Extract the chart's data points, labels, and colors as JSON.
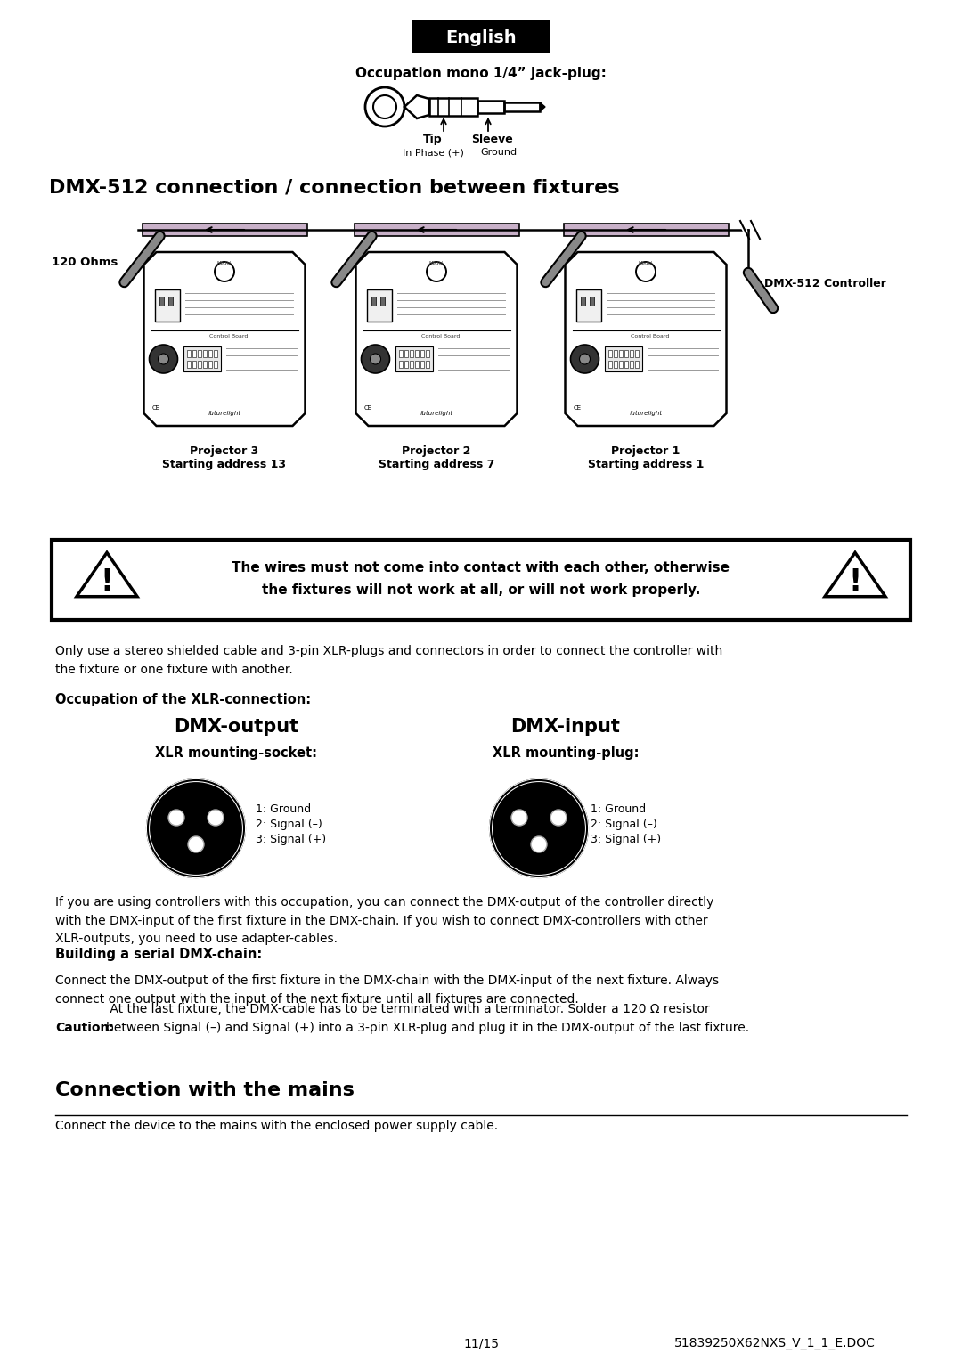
{
  "bg_color": "#ffffff",
  "title_english": "English",
  "jack_plug_title": "Occupation mono 1/4” jack-plug:",
  "dmx_section_title": "DMX-512 connection / connection between fixtures",
  "projector_labels": [
    "Projector 3\nStarting address 13",
    "Projector 2\nStarting address 7",
    "Projector 1\nStarting address 1"
  ],
  "dmx512_controller_label": "DMX-512 Controller",
  "ohms_label": "120 Ohms",
  "warning_line1": "The wires must not come into contact with each other, otherwise",
  "warning_line2": "the fixtures will not work at all, or will not work properly.",
  "xlr_occupation_title": "Occupation of the XLR-connection:",
  "dmx_output_title": "DMX-output",
  "dmx_input_title": "DMX-input",
  "xlr_output_subtitle": "XLR mounting-socket:",
  "xlr_input_subtitle": "XLR mounting-plug:",
  "xlr_pin_labels": [
    "1: Ground",
    "2: Signal (–)",
    "3: Signal (+)"
  ],
  "stereo_text": "Only use a stereo shielded cable and 3-pin XLR-plugs and connectors in order to connect the controller with\nthe fixture or one fixture with another.",
  "serial_dmx_title": "Building a serial DMX-chain:",
  "serial_dmx_text": "Connect the DMX-output of the first fixture in the DMX-chain with the DMX-input of the next fixture. Always\nconnect one output with the input of the next fixture until all fixtures are connected.",
  "caution_bold": "Caution:",
  "caution_rest": " At the last fixture, the DMX-cable has to be terminated with a terminator. Solder a 120 Ω resistor\nbetween Signal (–) and Signal (+) into a 3-pin XLR-plug and plug it in the DMX-output of the last fixture.",
  "if_text": "If you are using controllers with this occupation, you can connect the DMX-output of the controller directly\nwith the DMX-input of the first fixture in the DMX-chain. If you wish to connect DMX-controllers with other\nXLR-outputs, you need to use adapter-cables.",
  "connection_mains_title": "Connection with the mains",
  "connection_mains_text": "Connect the device to the mains with the enclosed power supply cable.",
  "footer_left": "11/15",
  "footer_right": "51839250X62NXS_V_1_1_E.DOC"
}
